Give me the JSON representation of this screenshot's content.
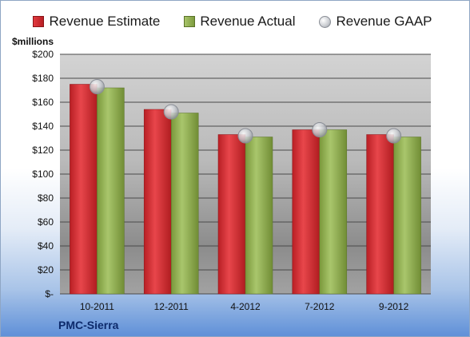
{
  "legend": {
    "estimate": "Revenue Estimate",
    "actual": "Revenue Actual",
    "gaap": "Revenue GAAP"
  },
  "units_label": "$millions",
  "company_label": "PMC-Sierra",
  "colors": {
    "estimate": "#d32a2f",
    "actual": "#93b155",
    "gaap": "#c9ccd1"
  },
  "chart_data": {
    "type": "bar",
    "categories": [
      "10-2011",
      "12-2011",
      "4-2012",
      "7-2012",
      "9-2012"
    ],
    "series": [
      {
        "name": "Revenue Estimate",
        "values": [
          175,
          154,
          133,
          137,
          133
        ]
      },
      {
        "name": "Revenue Actual",
        "values": [
          172,
          151,
          131,
          137,
          131
        ]
      },
      {
        "name": "Revenue GAAP",
        "values": [
          173,
          152,
          132,
          137,
          132
        ]
      }
    ],
    "ylabel": "$millions",
    "ylim": [
      0,
      200
    ],
    "y_ticks": [
      0,
      20,
      40,
      60,
      80,
      100,
      120,
      140,
      160,
      180,
      200
    ],
    "y_tick_labels": [
      "$-",
      "$20",
      "$40",
      "$60",
      "$80",
      "$100",
      "$120",
      "$140",
      "$160",
      "$180",
      "$200"
    ],
    "grid": true,
    "legend_position": "top"
  }
}
